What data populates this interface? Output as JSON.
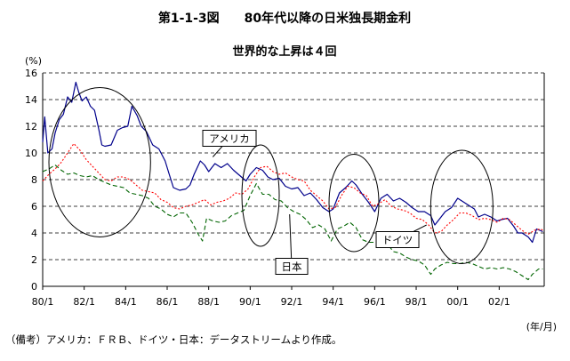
{
  "title": "第1-1-3図　　80年代以降の日米独長期金利",
  "subtitle": "世界的な上昇は４回",
  "y_unit": "(%)",
  "x_unit": "(年/月)",
  "source_note": "（備考）アメリカ：ＦＲＢ、ドイツ・日本：データストリームより作成。",
  "colors": {
    "usa": "#00008b",
    "germany": "#ff0000",
    "japan": "#006400",
    "grid": "#000000"
  },
  "chart_data": {
    "type": "line",
    "title": "第1-1-3図　　80年代以降の日米独長期金利",
    "subtitle": "世界的な上昇は４回",
    "ylabel": "(%)",
    "xlabel": "(年/月)",
    "ylim": [
      0,
      16
    ],
    "xlim": [
      1980.0,
      2004.17
    ],
    "y_ticks": [
      "0",
      "2",
      "4",
      "6",
      "8",
      "10",
      "12",
      "14",
      "16"
    ],
    "x_ticks": [
      {
        "x": 1980.0,
        "label": "80/1"
      },
      {
        "x": 1982.0,
        "label": "82/1"
      },
      {
        "x": 1984.0,
        "label": "84/1"
      },
      {
        "x": 1986.0,
        "label": "86/1"
      },
      {
        "x": 1988.0,
        "label": "88/1"
      },
      {
        "x": 1990.0,
        "label": "90/1"
      },
      {
        "x": 1992.0,
        "label": "92/1"
      },
      {
        "x": 1994.0,
        "label": "94/1"
      },
      {
        "x": 1996.0,
        "label": "96/1"
      },
      {
        "x": 1998.0,
        "label": "98/1"
      },
      {
        "x": 2000.0,
        "label": "00/1"
      },
      {
        "x": 2002.0,
        "label": "02/1"
      }
    ],
    "grid": "horizontal dashed",
    "series": [
      {
        "name": "アメリカ",
        "style": "solid",
        "x": [
          1980.0,
          1980.1,
          1980.25,
          1980.45,
          1980.6,
          1980.8,
          1981.0,
          1981.2,
          1981.4,
          1981.6,
          1981.75,
          1981.9,
          1982.1,
          1982.3,
          1982.5,
          1982.7,
          1982.85,
          1983.0,
          1983.3,
          1983.6,
          1983.85,
          1984.1,
          1984.3,
          1984.55,
          1984.75,
          1985.0,
          1985.3,
          1985.6,
          1985.9,
          1986.1,
          1986.3,
          1986.6,
          1986.9,
          1987.1,
          1987.3,
          1987.6,
          1987.8,
          1988.0,
          1988.3,
          1988.6,
          1988.9,
          1989.2,
          1989.5,
          1989.8,
          1990.0,
          1990.3,
          1990.6,
          1990.85,
          1991.1,
          1991.4,
          1991.7,
          1992.0,
          1992.3,
          1992.6,
          1992.9,
          1993.2,
          1993.5,
          1993.8,
          1994.0,
          1994.3,
          1994.6,
          1994.9,
          1995.1,
          1995.4,
          1995.7,
          1996.0,
          1996.3,
          1996.6,
          1996.9,
          1997.2,
          1997.5,
          1997.8,
          1998.1,
          1998.4,
          1998.7,
          1998.9,
          1999.1,
          1999.4,
          1999.7,
          2000.0,
          2000.2,
          2000.5,
          2000.8,
          2001.0,
          2001.3,
          2001.6,
          2001.9,
          2002.1,
          2002.4,
          2002.7,
          2002.9,
          2003.1,
          2003.4,
          2003.6,
          2003.8,
          2004.1
        ],
        "y": [
          10.8,
          12.7,
          10.0,
          10.3,
          11.5,
          12.5,
          12.9,
          14.2,
          13.8,
          15.3,
          14.5,
          13.9,
          14.2,
          13.5,
          13.2,
          11.8,
          10.6,
          10.5,
          10.6,
          11.7,
          11.9,
          12.0,
          13.5,
          12.8,
          12.0,
          11.6,
          10.6,
          10.3,
          9.4,
          8.4,
          7.4,
          7.2,
          7.3,
          7.6,
          8.4,
          9.4,
          9.1,
          8.6,
          9.2,
          8.9,
          9.2,
          8.7,
          8.3,
          7.9,
          8.4,
          8.9,
          8.7,
          8.2,
          8.0,
          8.1,
          7.5,
          7.3,
          7.4,
          6.8,
          7.0,
          6.5,
          5.9,
          5.6,
          5.8,
          7.0,
          7.4,
          7.9,
          7.6,
          6.9,
          6.3,
          5.6,
          6.6,
          6.9,
          6.4,
          6.6,
          6.3,
          5.9,
          5.6,
          5.6,
          5.3,
          4.6,
          5.0,
          5.6,
          5.9,
          6.6,
          6.4,
          6.1,
          5.8,
          5.2,
          5.4,
          5.2,
          4.9,
          5.0,
          5.1,
          4.5,
          4.0,
          4.0,
          3.7,
          3.3,
          4.3,
          4.1
        ]
      },
      {
        "name": "ドイツ",
        "style": "dotted",
        "x": [
          1980.0,
          1980.3,
          1980.6,
          1980.9,
          1981.2,
          1981.5,
          1981.8,
          1982.1,
          1982.4,
          1982.7,
          1983.0,
          1983.3,
          1983.6,
          1983.9,
          1984.2,
          1984.5,
          1984.8,
          1985.1,
          1985.4,
          1985.7,
          1986.0,
          1986.3,
          1986.6,
          1986.9,
          1987.2,
          1987.5,
          1987.8,
          1988.1,
          1988.4,
          1988.7,
          1989.0,
          1989.3,
          1989.6,
          1989.9,
          1990.2,
          1990.5,
          1990.8,
          1991.1,
          1991.4,
          1991.7,
          1992.0,
          1992.3,
          1992.6,
          1992.9,
          1993.2,
          1993.5,
          1993.8,
          1994.1,
          1994.4,
          1994.7,
          1995.0,
          1995.3,
          1995.6,
          1995.9,
          1996.2,
          1996.5,
          1996.8,
          1997.1,
          1997.4,
          1997.7,
          1998.0,
          1998.3,
          1998.6,
          1998.9,
          1999.2,
          1999.5,
          1999.8,
          2000.1,
          2000.4,
          2000.7,
          2001.0,
          2001.3,
          2001.6,
          2001.9,
          2002.2,
          2002.5,
          2002.8,
          2003.1,
          2003.4,
          2003.7,
          2004.0,
          2004.1
        ],
        "y": [
          7.9,
          8.4,
          8.8,
          9.3,
          10.0,
          10.7,
          10.2,
          9.5,
          9.0,
          8.5,
          8.0,
          7.9,
          8.2,
          8.2,
          8.0,
          7.6,
          7.2,
          7.1,
          7.0,
          6.5,
          6.3,
          5.9,
          5.8,
          6.0,
          6.1,
          6.3,
          6.5,
          6.1,
          6.3,
          6.4,
          6.6,
          7.0,
          6.9,
          7.3,
          8.2,
          8.9,
          9.0,
          8.6,
          8.4,
          8.5,
          8.2,
          8.0,
          7.9,
          7.2,
          6.8,
          6.4,
          5.8,
          5.9,
          6.8,
          7.5,
          7.4,
          7.0,
          6.8,
          6.0,
          6.2,
          6.5,
          6.0,
          5.8,
          5.7,
          5.5,
          5.1,
          5.0,
          4.6,
          4.0,
          4.1,
          4.6,
          5.0,
          5.5,
          5.5,
          5.3,
          5.0,
          5.1,
          5.0,
          4.8,
          5.1,
          5.0,
          4.6,
          4.2,
          3.9,
          4.2,
          4.3,
          4.2
        ]
      },
      {
        "name": "日本",
        "style": "dashed",
        "x": [
          1980.0,
          1980.3,
          1980.6,
          1980.9,
          1981.2,
          1981.5,
          1981.8,
          1982.1,
          1982.4,
          1982.7,
          1983.0,
          1983.3,
          1983.6,
          1983.9,
          1984.2,
          1984.5,
          1984.8,
          1985.1,
          1985.4,
          1985.7,
          1986.0,
          1986.3,
          1986.6,
          1986.9,
          1987.2,
          1987.5,
          1987.7,
          1987.9,
          1988.2,
          1988.5,
          1988.8,
          1989.1,
          1989.4,
          1989.7,
          1990.0,
          1990.3,
          1990.6,
          1990.9,
          1991.2,
          1991.5,
          1991.8,
          1992.1,
          1992.4,
          1992.7,
          1993.0,
          1993.3,
          1993.6,
          1993.9,
          1994.2,
          1994.5,
          1994.8,
          1995.1,
          1995.4,
          1995.7,
          1996.0,
          1996.3,
          1996.6,
          1996.9,
          1997.2,
          1997.5,
          1997.8,
          1998.1,
          1998.4,
          1998.7,
          1998.9,
          1999.2,
          1999.5,
          1999.8,
          2000.1,
          2000.4,
          2000.7,
          2001.0,
          2001.3,
          2001.6,
          2001.9,
          2002.2,
          2002.5,
          2002.8,
          2003.1,
          2003.4,
          2003.6,
          2003.9,
          2004.1
        ],
        "y": [
          8.6,
          8.8,
          9.1,
          8.7,
          8.4,
          8.5,
          8.3,
          8.2,
          8.3,
          8.0,
          7.8,
          7.6,
          7.5,
          7.4,
          7.0,
          6.9,
          6.8,
          6.6,
          6.0,
          5.8,
          5.4,
          5.2,
          5.5,
          5.5,
          4.8,
          3.9,
          3.4,
          5.1,
          4.9,
          4.8,
          4.9,
          5.3,
          5.5,
          5.7,
          6.8,
          7.7,
          6.9,
          6.9,
          6.5,
          6.4,
          5.9,
          5.6,
          5.4,
          5.0,
          4.4,
          4.6,
          4.3,
          3.4,
          4.3,
          4.5,
          4.8,
          4.4,
          3.5,
          3.3,
          3.3,
          3.3,
          3.2,
          2.6,
          2.5,
          2.2,
          2.0,
          1.9,
          1.6,
          0.9,
          1.3,
          1.6,
          1.8,
          1.7,
          1.7,
          1.8,
          1.7,
          1.5,
          1.3,
          1.4,
          1.3,
          1.4,
          1.3,
          1.1,
          0.8,
          0.5,
          0.9,
          1.3,
          1.3
        ]
      }
    ],
    "annotations": [
      {
        "text": "アメリカ",
        "target": "アメリカ"
      },
      {
        "text": "日本",
        "target": "日本"
      },
      {
        "text": "ドイツ",
        "target": "ドイツ"
      }
    ],
    "highlight_periods": [
      {
        "x_start": 1980.3,
        "x_end": 1985.2
      },
      {
        "x_start": 1989.6,
        "x_end": 1991.4
      },
      {
        "x_start": 1993.8,
        "x_end": 1996.2
      },
      {
        "x_start": 1998.7,
        "x_end": 2001.7
      }
    ]
  }
}
